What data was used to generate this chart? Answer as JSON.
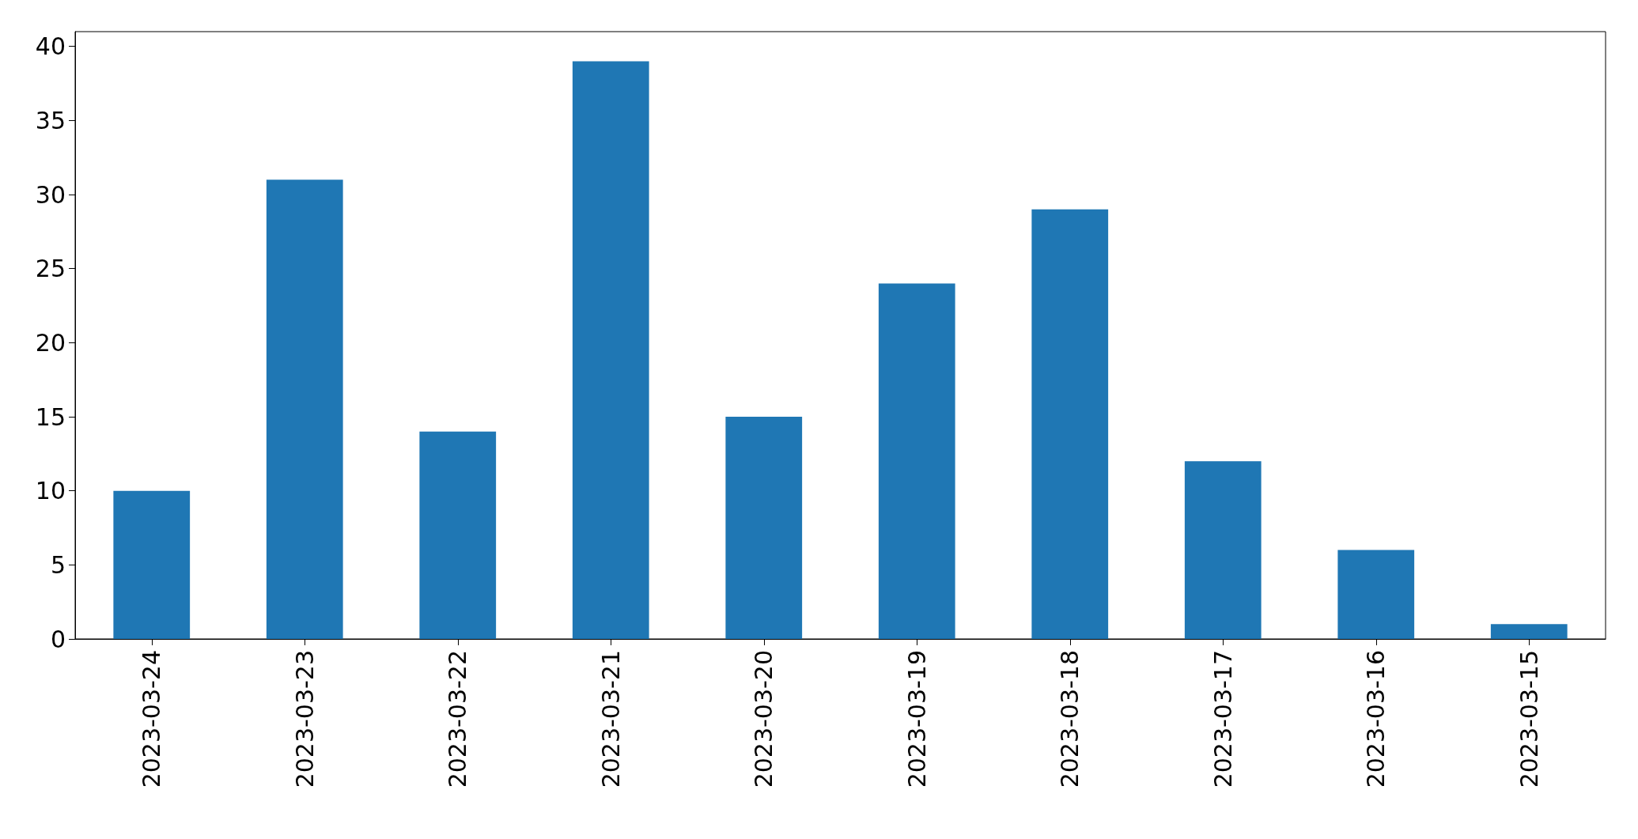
{
  "chart_data": {
    "type": "bar",
    "categories": [
      "2023-03-24",
      "2023-03-23",
      "2023-03-22",
      "2023-03-21",
      "2023-03-20",
      "2023-03-19",
      "2023-03-18",
      "2023-03-17",
      "2023-03-16",
      "2023-03-15"
    ],
    "values": [
      10,
      31,
      14,
      39,
      15,
      24,
      29,
      12,
      6,
      1
    ],
    "color": "#1f77b4",
    "ylim": [
      0,
      41
    ],
    "yticks": [
      0,
      5,
      10,
      15,
      20,
      25,
      30,
      35,
      40
    ],
    "grid": false
  }
}
